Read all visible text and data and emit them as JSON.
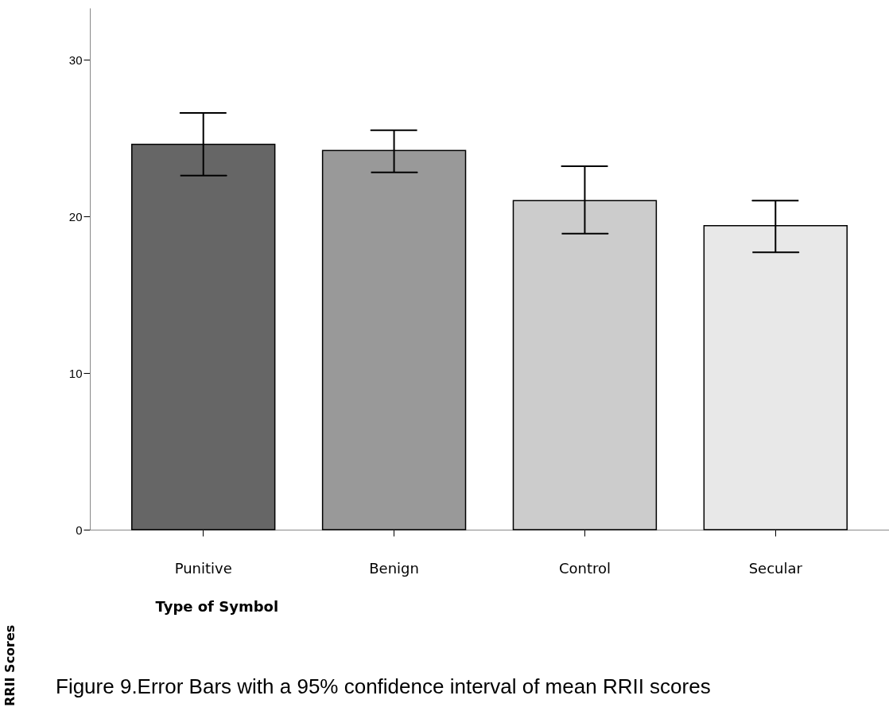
{
  "chart_data": {
    "type": "bar",
    "xlabel": "Type of Symbol",
    "categories": [
      "Punitive",
      "Benign",
      "Control",
      "Secular"
    ],
    "values": [
      24.6,
      24.2,
      21.0,
      19.4
    ],
    "colors": [
      "#666666",
      "#999999",
      "#cccccc",
      "#e8e8e8"
    ],
    "errors": [
      [
        22.6,
        26.6
      ],
      [
        22.8,
        25.5
      ],
      [
        18.9,
        23.2
      ],
      [
        17.7,
        21.0
      ]
    ],
    "ylim": [
      0,
      33.3
    ],
    "yticks": [
      0,
      10,
      20,
      30
    ],
    "grid": false,
    "annotations": [
      "RRII Scores",
      "Figure 9.Error Bars with a 95% confidence interval of mean RRII scores"
    ]
  }
}
